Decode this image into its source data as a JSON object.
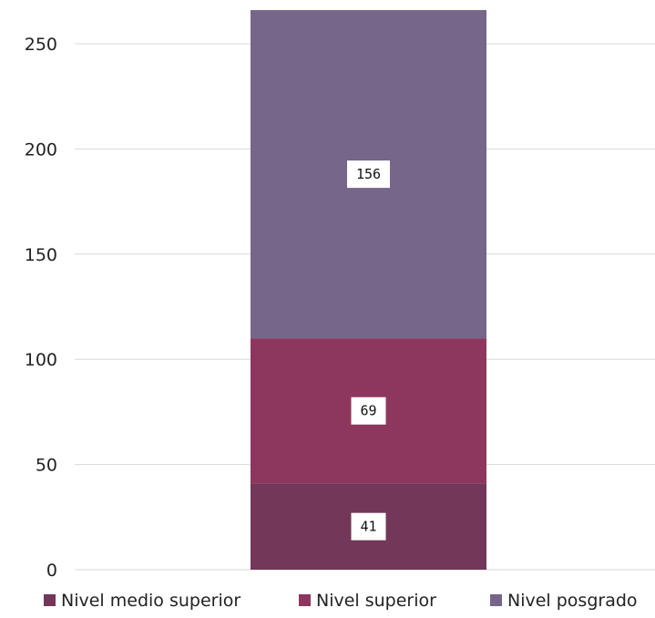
{
  "chart_data": {
    "type": "bar",
    "stacked": true,
    "categories": [
      ""
    ],
    "series": [
      {
        "name": "Nivel medio superior",
        "values": [
          41
        ],
        "color": "#723759"
      },
      {
        "name": "Nivel superior",
        "values": [
          69
        ],
        "color": "#8E375E"
      },
      {
        "name": "Nivel posgrado",
        "values": [
          156
        ],
        "color": "#76668A"
      }
    ],
    "ylim": [
      0,
      250
    ],
    "yticks": [
      "0",
      "50",
      "100",
      "150",
      "200",
      "250"
    ],
    "grid": true,
    "legend": "bottom",
    "data_labels": true
  }
}
